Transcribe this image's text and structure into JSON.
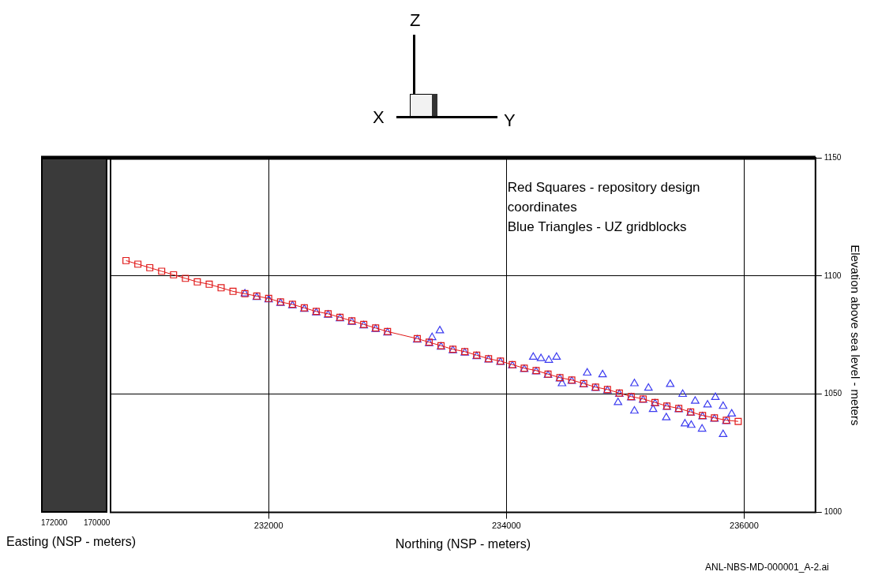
{
  "chart_data": {
    "type": "scatter",
    "xlabel": "Northing (NSP - meters)",
    "ylabel": "Elevation above sea level - meters",
    "xlim": [
      230670,
      236600
    ],
    "xticks": [
      232000,
      234000,
      236000
    ],
    "ylim": [
      1000,
      1150
    ],
    "yticks": [
      1000,
      1050,
      1100,
      1150
    ],
    "grid": true,
    "legend": false,
    "annotations": [
      "Red Squares - repository design coordinates",
      "Blue Triangles - UZ gridblocks",
      "Easting (NSP - meters)",
      "172000",
      "170000",
      "ANL-NBS-MD-000001_A-2.ai",
      "X",
      "Y",
      "Z"
    ],
    "series": [
      {
        "type": "line",
        "marker": "square",
        "color": "#e01818",
        "x": [
          230800,
          230900,
          231000,
          231100,
          231200,
          231300,
          231400,
          231500,
          231600,
          231700,
          231800,
          231900,
          232000,
          232100,
          232200,
          232300,
          232400,
          232500,
          232600,
          232700,
          232800,
          232900,
          233000,
          233250,
          233350,
          233450,
          233550,
          233650,
          233750,
          233850,
          233950,
          234050,
          234150,
          234250,
          234350,
          234450,
          234550,
          234650,
          234750,
          234850,
          234950,
          235050,
          235150,
          235250,
          235350,
          235450,
          235550,
          235650,
          235750,
          235850,
          235950
        ],
        "values": [
          1106.5,
          1105,
          1103.5,
          1102,
          1100.5,
          1099,
          1097.5,
          1096.5,
          1095,
          1093.5,
          1092.5,
          1091.5,
          1090.5,
          1089,
          1088,
          1086.5,
          1085,
          1084,
          1082.5,
          1081,
          1079.5,
          1078,
          1076.5,
          1073.5,
          1072,
          1070.5,
          1069,
          1068,
          1066.5,
          1065,
          1064,
          1062.5,
          1061,
          1060,
          1058.5,
          1057,
          1056,
          1054.5,
          1053,
          1052,
          1050.5,
          1049,
          1048,
          1046.5,
          1045,
          1044,
          1042.5,
          1041,
          1040,
          1039,
          1038.5
        ]
      },
      {
        "type": "scatter",
        "marker": "triangle",
        "color": "#3c3cf0",
        "x": [
          231800,
          231900,
          232000,
          232100,
          232200,
          232300,
          232400,
          232500,
          232600,
          232700,
          232800,
          232900,
          233000,
          233250,
          233350,
          233450,
          233550,
          233650,
          233750,
          233850,
          233950,
          234050,
          234150,
          234250,
          234350,
          234450,
          234550,
          234650,
          234750,
          234850,
          234950,
          235050,
          235150,
          235250,
          235350,
          235450,
          235550,
          235650,
          235750,
          235850,
          233440,
          233375,
          234226,
          234291,
          234357,
          234422,
          234680,
          234809,
          235077,
          235378,
          235195,
          235483,
          235588,
          235758,
          235823,
          235692,
          235895,
          234939,
          235077,
          235345,
          235502,
          235555,
          235646,
          235823,
          234468,
          235234
        ],
        "values": [
          1092.5,
          1091,
          1090,
          1088.5,
          1087.5,
          1086,
          1084.5,
          1083.5,
          1082,
          1080.5,
          1079,
          1077.5,
          1076,
          1073,
          1071.5,
          1070,
          1068.5,
          1067.5,
          1066,
          1064.5,
          1063.5,
          1062,
          1060.5,
          1059.5,
          1058,
          1056.5,
          1055.5,
          1054,
          1052.5,
          1051.5,
          1050,
          1048.5,
          1047.5,
          1046,
          1044.5,
          1043.5,
          1042,
          1040.5,
          1039.5,
          1038.5,
          1076.9,
          1074,
          1065.7,
          1065.1,
          1064.4,
          1065.7,
          1059,
          1058.3,
          1054.5,
          1054.2,
          1052.6,
          1050,
          1047.1,
          1048.7,
          1044.9,
          1045.5,
          1041.7,
          1046.5,
          1042.9,
          1040.1,
          1037.5,
          1036.9,
          1035.3,
          1033,
          1054.5,
          1043.6
        ]
      }
    ]
  }
}
